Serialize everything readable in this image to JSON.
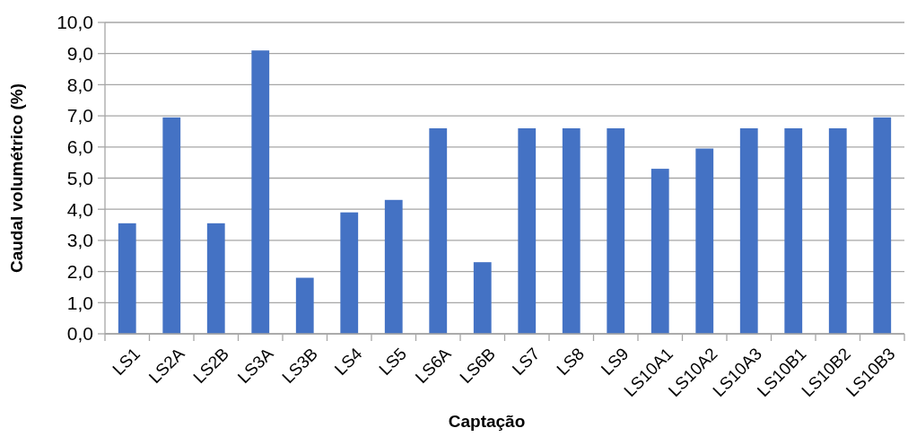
{
  "chart_data": {
    "type": "bar",
    "xlabel": "Captação",
    "ylabel": "Caudal volumétrico (%)",
    "categories": [
      "LS1",
      "LS2A",
      "LS2B",
      "LS3A",
      "LS3B",
      "LS4",
      "LS5",
      "LS6A",
      "LS6B",
      "LS7",
      "LS8",
      "LS9",
      "LS10A1",
      "LS10A2",
      "LS10A3",
      "LS10B1",
      "LS10B2",
      "LS10B3"
    ],
    "values": [
      3.55,
      6.95,
      3.55,
      9.1,
      1.8,
      3.9,
      4.3,
      6.6,
      2.3,
      6.6,
      6.6,
      6.6,
      5.3,
      5.95,
      6.6,
      6.6,
      6.6,
      6.95
    ],
    "color": "#4472c4",
    "ylim": [
      0,
      10
    ],
    "yticks": [
      {
        "value": 0,
        "label": "0,0"
      },
      {
        "value": 1,
        "label": "1,0"
      },
      {
        "value": 2,
        "label": "2,0"
      },
      {
        "value": 3,
        "label": "3,0"
      },
      {
        "value": 4,
        "label": "4,0"
      },
      {
        "value": 5,
        "label": "5,0"
      },
      {
        "value": 6,
        "label": "6,0"
      },
      {
        "value": 7,
        "label": "7,0"
      },
      {
        "value": 8,
        "label": "8,0"
      },
      {
        "value": 9,
        "label": "9,0"
      },
      {
        "value": 10,
        "label": "10,0"
      }
    ],
    "grid": "y"
  }
}
